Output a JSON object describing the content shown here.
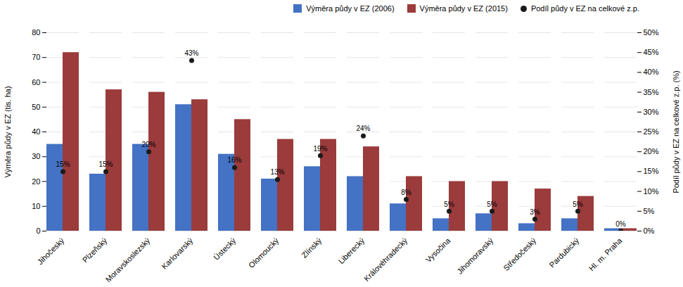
{
  "chart_data": {
    "type": "bar",
    "categories": [
      "Jihočeský",
      "Plzeňský",
      "Moravskoslezský",
      "Karlovarský",
      "Ústecký",
      "Olomoucký",
      "Zlínský",
      "Liberecký",
      "Královéhradecký",
      "Vysočina",
      "Jihomoravský",
      "Středočeský",
      "Pardubický",
      "Hl. m. Praha"
    ],
    "series": [
      {
        "name": "Výměra půdy v EZ (2006)",
        "color": "#4472C4",
        "values": [
          35,
          23,
          35,
          51,
          31,
          21,
          26,
          22,
          11,
          5,
          7,
          3,
          5,
          1
        ]
      },
      {
        "name": "Výměra půdy v EZ (2015)",
        "color": "#9B3B3B",
        "values": [
          72,
          57,
          56,
          53,
          45,
          37,
          37,
          34,
          22,
          20,
          20,
          17,
          14,
          1
        ]
      },
      {
        "name": "Podíl půdy v EZ na celkové z.p.",
        "color": "#1A1A1A",
        "type": "scatter",
        "marker": "circle",
        "axis": "y2",
        "data_labels": true,
        "values": [
          15,
          15,
          20,
          43,
          16,
          13,
          19,
          24,
          8,
          5,
          5,
          3,
          5,
          0
        ],
        "value_labels": [
          "15%",
          "15%",
          "20%",
          "43%",
          "16%",
          "13%",
          "19%",
          "24%",
          "8%",
          "5%",
          "5%",
          "3%",
          "5%",
          "0%"
        ]
      }
    ],
    "ylabel": "Výměra půdy v EZ (tis. ha)",
    "y2label": "Podíl půdy v EZ na celkové z.p. (%)",
    "ylim": [
      0,
      80
    ],
    "yticks": [
      0,
      10,
      20,
      30,
      40,
      50,
      60,
      70,
      80
    ],
    "y2lim": [
      0,
      50
    ],
    "y2ticks": [
      {
        "value": 0,
        "label": "0%"
      },
      {
        "value": 5,
        "label": "5%"
      },
      {
        "value": 10,
        "label": "10%"
      },
      {
        "value": 15,
        "label": "15%"
      },
      {
        "value": 20,
        "label": "20%"
      },
      {
        "value": 25,
        "label": "25%"
      },
      {
        "value": 30,
        "label": "30%"
      },
      {
        "value": 35,
        "label": "35%"
      },
      {
        "value": 40,
        "label": "40%"
      },
      {
        "value": 45,
        "label": "45%"
      },
      {
        "value": 50,
        "label": "50%"
      }
    ],
    "grid": true,
    "legend": "upper right"
  }
}
